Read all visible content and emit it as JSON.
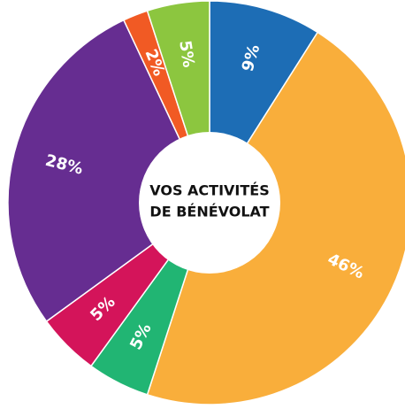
{
  "chart_data": {
    "type": "pie",
    "title": [
      "VOS ACTIVITÉS",
      "DE BÉNÉVOLAT"
    ],
    "values": [
      9,
      46,
      5,
      5,
      28,
      2,
      5
    ],
    "value_labels": [
      "9%",
      "46%",
      "5%",
      "5%",
      "28%",
      "2%",
      "5%"
    ],
    "colors": [
      "#1d6db5",
      "#f9ae3b",
      "#21b573",
      "#d4145a",
      "#662d91",
      "#f15a24",
      "#8cc63f"
    ]
  }
}
